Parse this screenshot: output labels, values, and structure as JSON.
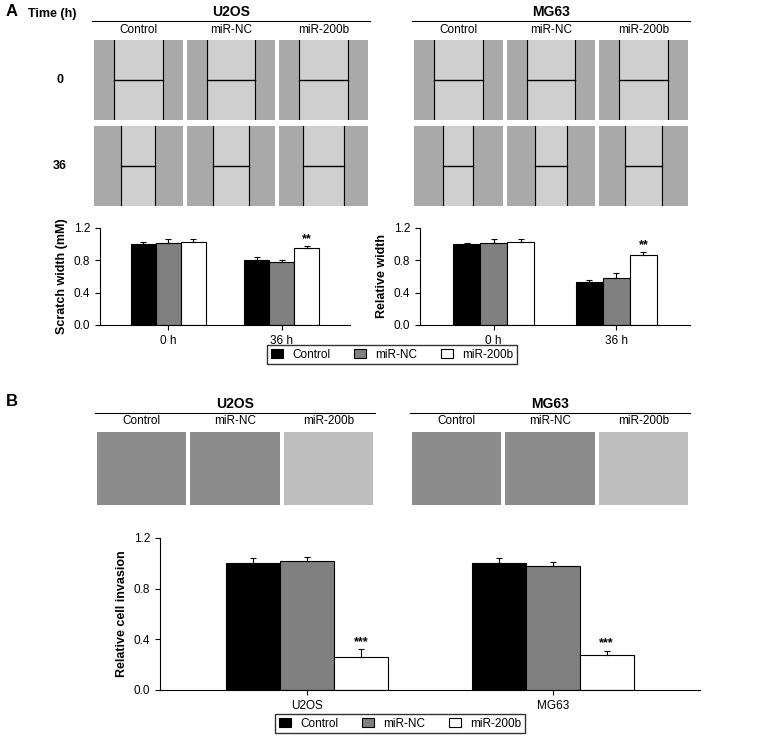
{
  "panel_labels": [
    "A",
    "B"
  ],
  "image_panels": {
    "A": {
      "row_header": "Time (h)",
      "rows": [
        "0",
        "36"
      ],
      "groups": [
        {
          "title": "U2OS",
          "columns": [
            "Control",
            "miR-NC",
            "miR-200b"
          ]
        },
        {
          "title": "MG63",
          "columns": [
            "Control",
            "miR-NC",
            "miR-200b"
          ]
        }
      ]
    },
    "B": {
      "groups": [
        {
          "title": "U2OS",
          "columns": [
            "Control",
            "miR-NC",
            "miR-200b"
          ]
        },
        {
          "title": "MG63",
          "columns": [
            "Control",
            "miR-NC",
            "miR-200b"
          ]
        }
      ]
    }
  },
  "chart_data": [
    {
      "type": "bar",
      "y_label": "Scratch width (mM)",
      "categories": [
        "0 h",
        "36 h"
      ],
      "ylim": [
        0,
        1.2
      ],
      "yticks": [
        {
          "value": 0,
          "label": "0.0"
        },
        {
          "value": 0.4,
          "label": "0.4"
        },
        {
          "value": 0.8,
          "label": "0.8"
        },
        {
          "value": 1.2,
          "label": "1.2"
        }
      ],
      "series": [
        {
          "name": "Control",
          "color": "#000000",
          "values": [
            1.0,
            0.81
          ],
          "errors": [
            0.03,
            0.03
          ],
          "annotations": [
            null,
            null
          ]
        },
        {
          "name": "miR-NC",
          "color": "#808080",
          "values": [
            1.02,
            0.78
          ],
          "errors": [
            0.04,
            0.03
          ],
          "annotations": [
            null,
            null
          ]
        },
        {
          "name": "miR-200b",
          "color": "#ffffff",
          "values": [
            1.03,
            0.95
          ],
          "errors": [
            0.03,
            0.03
          ],
          "annotations": [
            null,
            "**"
          ]
        }
      ]
    },
    {
      "type": "bar",
      "y_label": "Relative width",
      "categories": [
        "0 h",
        "36 h"
      ],
      "ylim": [
        0,
        1.2
      ],
      "yticks": [
        {
          "value": 0,
          "label": "0.0"
        },
        {
          "value": 0.4,
          "label": "0.4"
        },
        {
          "value": 0.8,
          "label": "0.8"
        },
        {
          "value": 1.2,
          "label": "1.2"
        }
      ],
      "legend": "lower center",
      "series": [
        {
          "name": "Control",
          "color": "#000000",
          "values": [
            1.0,
            0.53
          ],
          "errors": [
            0.02,
            0.03
          ],
          "annotations": [
            null,
            null
          ]
        },
        {
          "name": "miR-NC",
          "color": "#808080",
          "values": [
            1.02,
            0.58
          ],
          "errors": [
            0.04,
            0.06
          ],
          "annotations": [
            null,
            null
          ]
        },
        {
          "name": "miR-200b",
          "color": "#ffffff",
          "values": [
            1.03,
            0.87
          ],
          "errors": [
            0.03,
            0.03
          ],
          "annotations": [
            null,
            "**"
          ]
        }
      ]
    },
    {
      "type": "bar",
      "y_label": "Relative cell invasion",
      "categories": [
        "U2OS",
        "MG63"
      ],
      "ylim": [
        0,
        1.2
      ],
      "yticks": [
        {
          "value": 0,
          "label": "0.0"
        },
        {
          "value": 0.4,
          "label": "0.4"
        },
        {
          "value": 0.8,
          "label": "0.8"
        },
        {
          "value": 1.2,
          "label": "1.2"
        }
      ],
      "legend": "lower center",
      "series": [
        {
          "name": "Control",
          "color": "#000000",
          "values": [
            1.0,
            1.0
          ],
          "errors": [
            0.04,
            0.04
          ],
          "annotations": [
            null,
            null
          ]
        },
        {
          "name": "miR-NC",
          "color": "#808080",
          "values": [
            1.02,
            0.98
          ],
          "errors": [
            0.03,
            0.03
          ],
          "annotations": [
            null,
            null
          ]
        },
        {
          "name": "miR-200b",
          "color": "#ffffff",
          "values": [
            0.26,
            0.28
          ],
          "errors": [
            0.06,
            0.03
          ],
          "annotations": [
            "***",
            "***"
          ]
        }
      ]
    }
  ]
}
